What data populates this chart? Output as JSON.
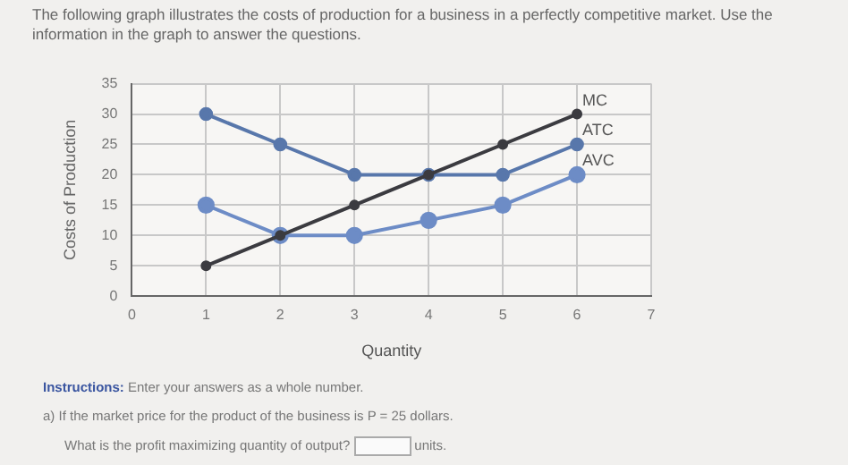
{
  "chart_data": {
    "type": "line",
    "title": "The following graph illustrates the costs of production for a business in a perfectly competitive market. Use the information in the graph to answer the questions.",
    "xlabel": "Quantity",
    "ylabel": "Costs of Production",
    "annotations": [
      "Instructions: Enter your answers as a whole number.",
      "a) If the market price for the product of the business is P = 25 dollars.",
      "What is the profit maximizing quantity of output?",
      "units."
    ],
    "x": [
      1,
      2,
      3,
      4,
      5,
      6
    ],
    "series": [
      {
        "name": "MC",
        "color": "#3b3b40",
        "values": [
          5,
          10,
          15,
          20,
          25,
          30
        ]
      },
      {
        "name": "ATC",
        "color": "#5877ab",
        "values": [
          30,
          25,
          20,
          20,
          20,
          25
        ]
      },
      {
        "name": "AVC",
        "color": "#6d8cc6",
        "values": [
          15,
          10,
          10,
          12.5,
          15,
          20
        ]
      }
    ],
    "xlim": [
      0,
      7
    ],
    "xticks": [
      0,
      1,
      2,
      3,
      4,
      5,
      6,
      7
    ],
    "ylim": [
      0,
      35
    ],
    "yticks": [
      0,
      5,
      10,
      15,
      20,
      25,
      30,
      35
    ],
    "grid": true,
    "legend": false,
    "marker": "circle",
    "line_style": "solid"
  }
}
